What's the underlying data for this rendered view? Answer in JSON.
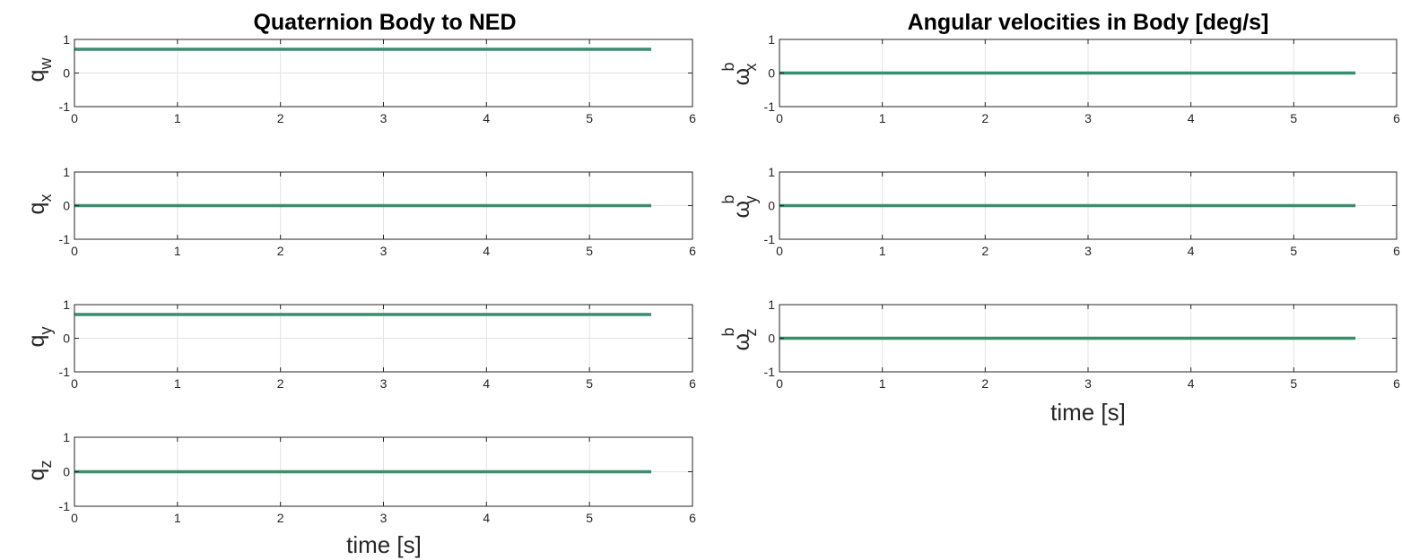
{
  "colors": {
    "line": "#3c8c6e",
    "grid": "#e3e3e3",
    "axis": "#262626"
  },
  "groups": [
    {
      "key": "quat",
      "title": "Quaternion Body to NED",
      "xlabel": "time [s]"
    },
    {
      "key": "omega",
      "title": "Angular velocities in Body [deg/s]",
      "xlabel": "time [s]"
    }
  ],
  "chart_data": [
    {
      "type": "line",
      "group": "quat",
      "ylabel": {
        "base": "q",
        "sub": "w"
      },
      "xlim": [
        0,
        6
      ],
      "ylim": [
        -1,
        1
      ],
      "xticks": [
        0,
        1,
        2,
        3,
        4,
        5,
        6
      ],
      "yticks": [
        -1,
        0,
        1
      ],
      "grid": true,
      "series": [
        {
          "x": [
            0,
            5.6
          ],
          "y": [
            0.707,
            0.707
          ]
        }
      ]
    },
    {
      "type": "line",
      "group": "quat",
      "ylabel": {
        "base": "q",
        "sub": "x"
      },
      "xlim": [
        0,
        6
      ],
      "ylim": [
        -1,
        1
      ],
      "xticks": [
        0,
        1,
        2,
        3,
        4,
        5,
        6
      ],
      "yticks": [
        -1,
        0,
        1
      ],
      "grid": true,
      "series": [
        {
          "x": [
            0,
            5.6
          ],
          "y": [
            0,
            0
          ]
        }
      ]
    },
    {
      "type": "line",
      "group": "quat",
      "ylabel": {
        "base": "q",
        "sub": "y"
      },
      "xlim": [
        0,
        6
      ],
      "ylim": [
        -1,
        1
      ],
      "xticks": [
        0,
        1,
        2,
        3,
        4,
        5,
        6
      ],
      "yticks": [
        -1,
        0,
        1
      ],
      "grid": true,
      "series": [
        {
          "x": [
            0,
            5.6
          ],
          "y": [
            0.707,
            0.707
          ]
        }
      ]
    },
    {
      "type": "line",
      "group": "quat",
      "ylabel": {
        "base": "q",
        "sub": "z"
      },
      "xlim": [
        0,
        6
      ],
      "ylim": [
        -1,
        1
      ],
      "xticks": [
        0,
        1,
        2,
        3,
        4,
        5,
        6
      ],
      "yticks": [
        -1,
        0,
        1
      ],
      "grid": true,
      "series": [
        {
          "x": [
            0,
            5.6
          ],
          "y": [
            0,
            0
          ]
        }
      ]
    },
    {
      "type": "line",
      "group": "omega",
      "ylabel": {
        "base": "ω",
        "sup": "b",
        "sub": "x"
      },
      "xlim": [
        0,
        6
      ],
      "ylim": [
        -1,
        1
      ],
      "xticks": [
        0,
        1,
        2,
        3,
        4,
        5,
        6
      ],
      "yticks": [
        -1,
        0,
        1
      ],
      "grid": true,
      "series": [
        {
          "x": [
            0,
            5.6
          ],
          "y": [
            0,
            0
          ]
        }
      ]
    },
    {
      "type": "line",
      "group": "omega",
      "ylabel": {
        "base": "ω",
        "sup": "b",
        "sub": "y"
      },
      "xlim": [
        0,
        6
      ],
      "ylim": [
        -1,
        1
      ],
      "xticks": [
        0,
        1,
        2,
        3,
        4,
        5,
        6
      ],
      "yticks": [
        -1,
        0,
        1
      ],
      "grid": true,
      "series": [
        {
          "x": [
            0,
            5.6
          ],
          "y": [
            0,
            0
          ]
        }
      ]
    },
    {
      "type": "line",
      "group": "omega",
      "ylabel": {
        "base": "ω",
        "sup": "b",
        "sub": "z"
      },
      "xlim": [
        0,
        6
      ],
      "ylim": [
        -1,
        1
      ],
      "xticks": [
        0,
        1,
        2,
        3,
        4,
        5,
        6
      ],
      "yticks": [
        -1,
        0,
        1
      ],
      "grid": true,
      "series": [
        {
          "x": [
            0,
            5.6
          ],
          "y": [
            0,
            0
          ]
        }
      ]
    }
  ]
}
